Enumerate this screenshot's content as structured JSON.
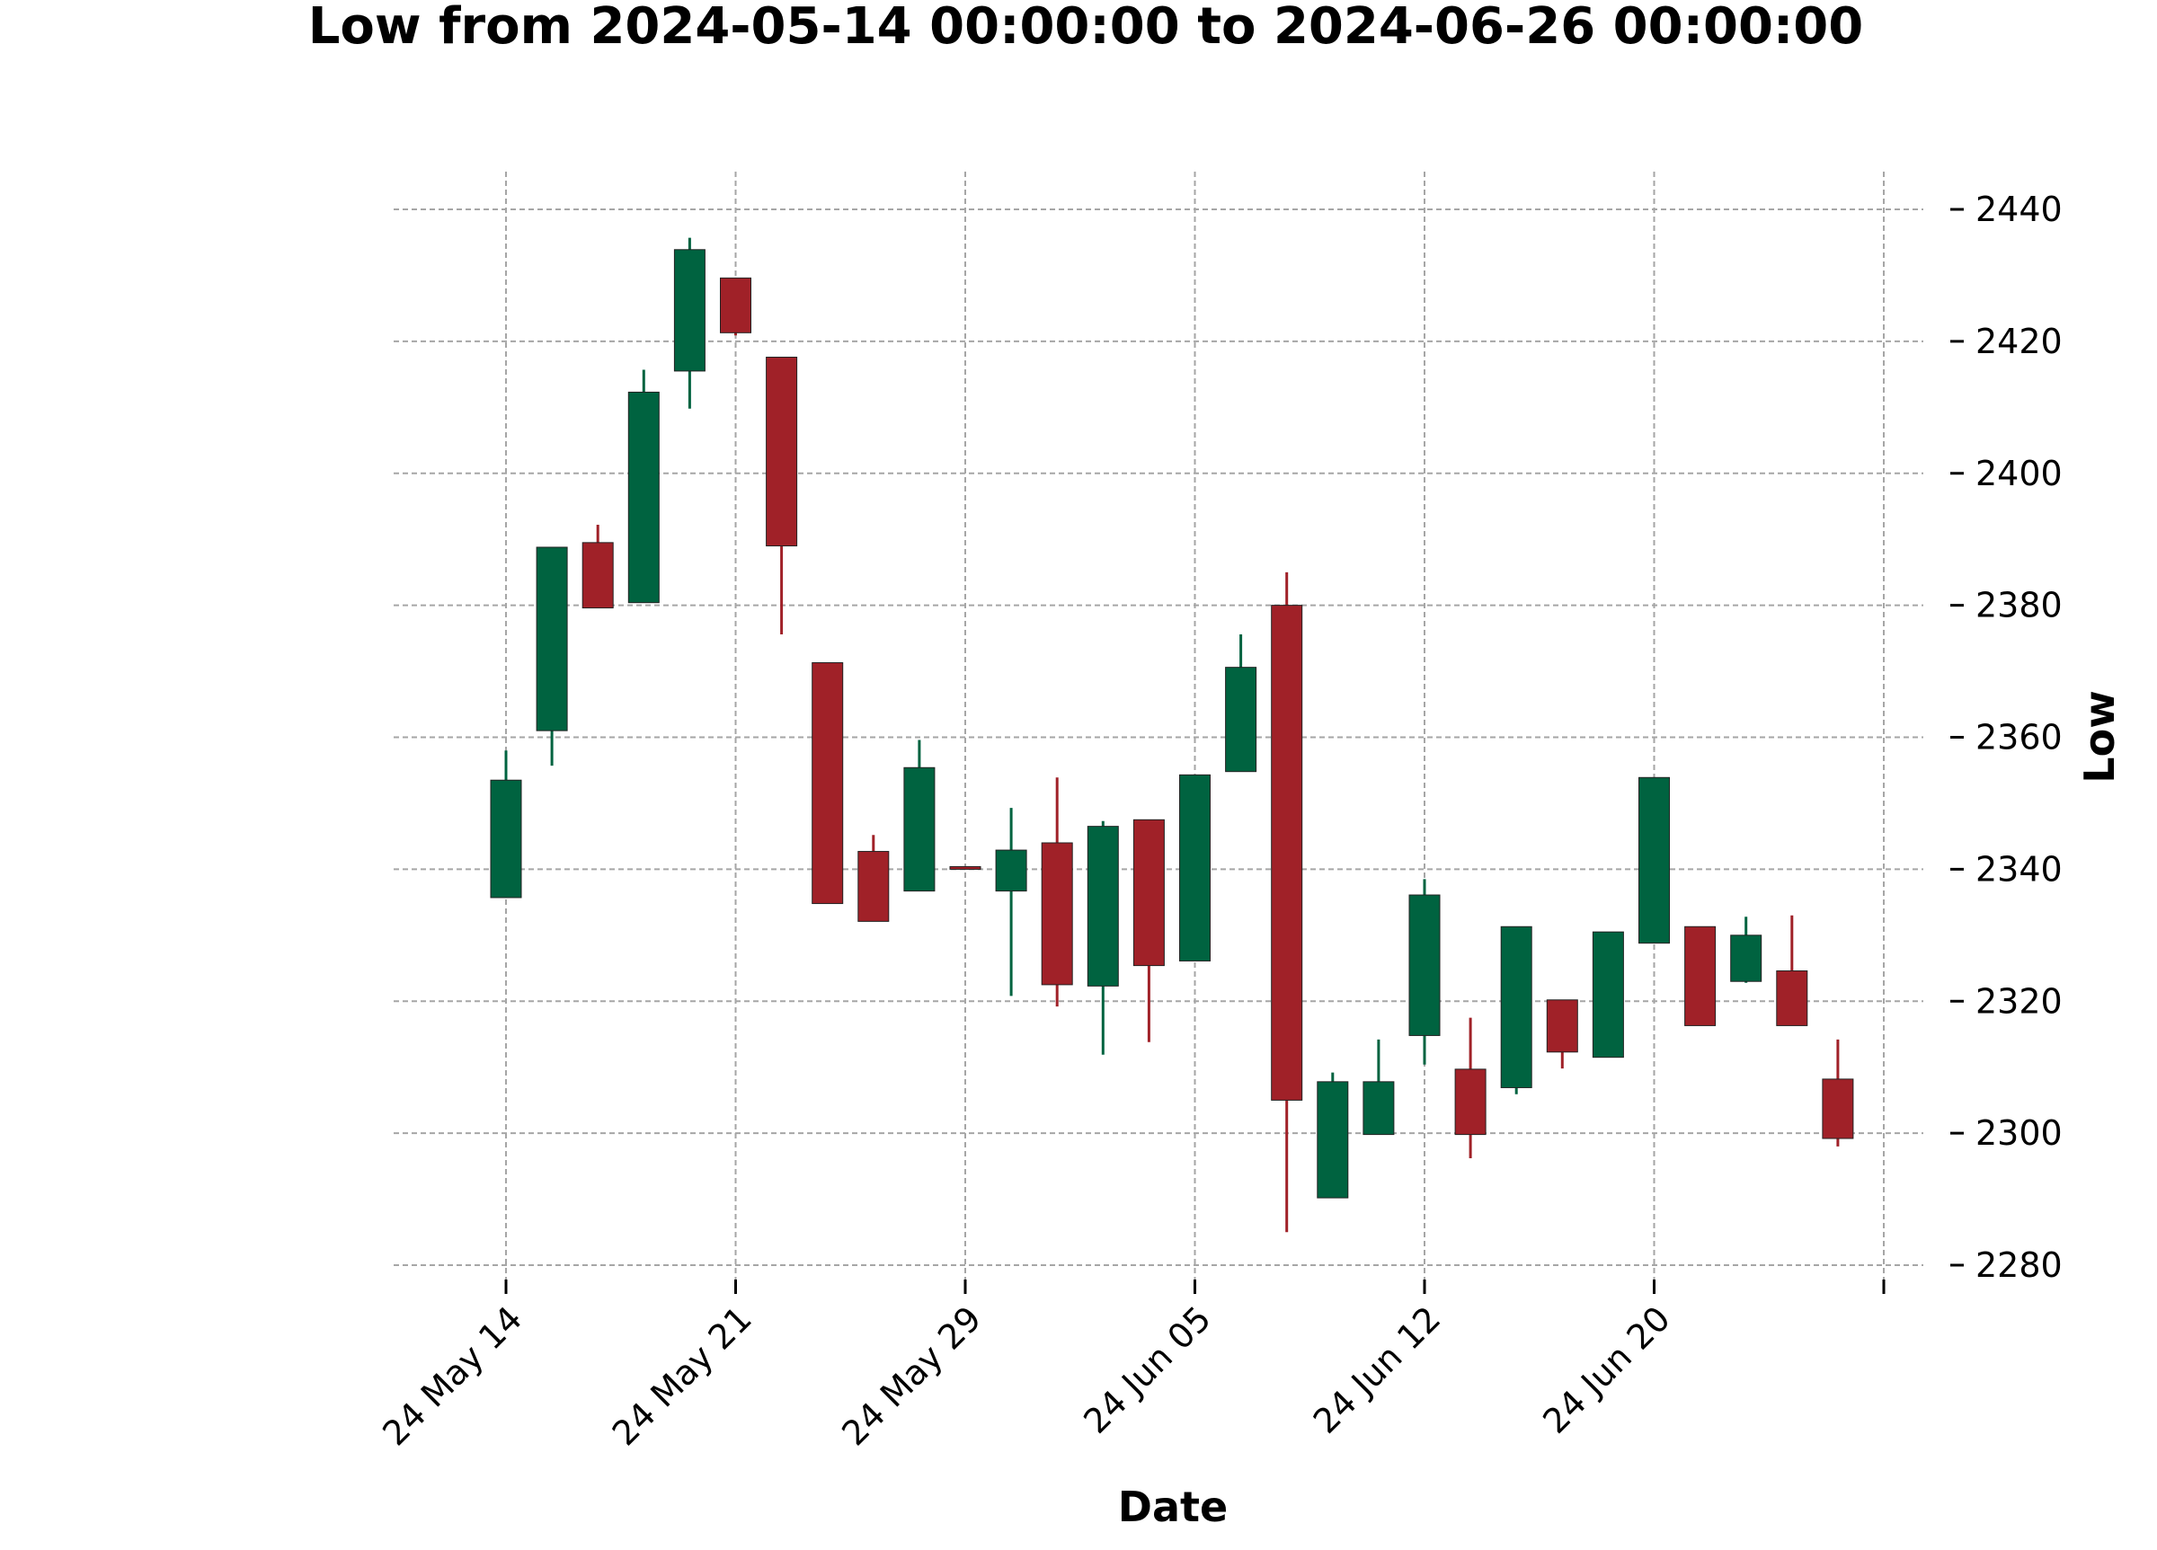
{
  "chart_data": {
    "type": "candlestick",
    "title": "Low from 2024-05-14 00:00:00 to 2024-06-26 00:00:00",
    "xlabel": "Date",
    "ylabel": "Low",
    "ylim": [
      2277,
      2443
    ],
    "y_ticks": [
      2280,
      2300,
      2320,
      2340,
      2360,
      2380,
      2400,
      2420,
      2440
    ],
    "x_ticks": [
      {
        "index": 0,
        "label": "24 May 14"
      },
      {
        "index": 5,
        "label": "24 May 21"
      },
      {
        "index": 10,
        "label": "24 May 29"
      },
      {
        "index": 15,
        "label": "24 Jun 05"
      },
      {
        "index": 20,
        "label": "24 Jun 12"
      },
      {
        "index": 25,
        "label": "24 Jun 20"
      },
      {
        "index": 30,
        "label": ""
      }
    ],
    "grid": true,
    "colors": {
      "up": "#006340",
      "down": "#a02128",
      "grid": "#a6a6a6"
    },
    "candles": [
      {
        "date": "2024-05-14",
        "open": 2335.7,
        "high": 2358.0,
        "low": 2335.7,
        "close": 2353.5
      },
      {
        "date": "2024-05-15",
        "open": 2361.0,
        "high": 2388.8,
        "low": 2355.7,
        "close": 2388.8
      },
      {
        "date": "2024-05-16",
        "open": 2389.5,
        "high": 2392.2,
        "low": 2379.6,
        "close": 2379.6
      },
      {
        "date": "2024-05-17",
        "open": 2380.4,
        "high": 2415.7,
        "low": 2380.4,
        "close": 2412.3
      },
      {
        "date": "2024-05-20",
        "open": 2415.5,
        "high": 2435.7,
        "low": 2409.8,
        "close": 2433.9
      },
      {
        "date": "2024-05-21",
        "open": 2429.6,
        "high": 2429.6,
        "low": 2420.9,
        "close": 2421.3
      },
      {
        "date": "2024-05-22",
        "open": 2417.6,
        "high": 2417.6,
        "low": 2375.6,
        "close": 2389.0
      },
      {
        "date": "2024-05-23",
        "open": 2371.3,
        "high": 2371.3,
        "low": 2334.8,
        "close": 2334.8
      },
      {
        "date": "2024-05-24",
        "open": 2342.7,
        "high": 2345.2,
        "low": 2332.1,
        "close": 2332.1
      },
      {
        "date": "2024-05-28",
        "open": 2336.7,
        "high": 2359.6,
        "low": 2336.7,
        "close": 2355.4
      },
      {
        "date": "2024-05-29",
        "open": 2340.4,
        "high": 2340.4,
        "low": 2340.0,
        "close": 2340.0
      },
      {
        "date": "2024-05-30",
        "open": 2336.7,
        "high": 2349.3,
        "low": 2320.8,
        "close": 2342.9
      },
      {
        "date": "2024-05-31",
        "open": 2344.0,
        "high": 2353.9,
        "low": 2319.2,
        "close": 2322.5
      },
      {
        "date": "2024-06-03",
        "open": 2322.3,
        "high": 2347.3,
        "low": 2311.9,
        "close": 2346.5
      },
      {
        "date": "2024-06-04",
        "open": 2347.5,
        "high": 2347.5,
        "low": 2313.8,
        "close": 2325.4
      },
      {
        "date": "2024-06-05",
        "open": 2326.1,
        "high": 2354.3,
        "low": 2326.1,
        "close": 2354.3
      },
      {
        "date": "2024-06-06",
        "open": 2354.8,
        "high": 2375.6,
        "low": 2354.8,
        "close": 2370.6
      },
      {
        "date": "2024-06-07",
        "open": 2380.0,
        "high": 2385.0,
        "low": 2285.0,
        "close": 2305.0
      },
      {
        "date": "2024-06-10",
        "open": 2290.2,
        "high": 2309.2,
        "low": 2290.2,
        "close": 2307.8
      },
      {
        "date": "2024-06-11",
        "open": 2299.8,
        "high": 2314.2,
        "low": 2299.8,
        "close": 2307.8
      },
      {
        "date": "2024-06-12",
        "open": 2314.8,
        "high": 2338.5,
        "low": 2310.4,
        "close": 2336.1
      },
      {
        "date": "2024-06-13",
        "open": 2309.7,
        "high": 2317.5,
        "low": 2296.2,
        "close": 2299.8
      },
      {
        "date": "2024-06-14",
        "open": 2306.9,
        "high": 2331.3,
        "low": 2305.9,
        "close": 2331.3
      },
      {
        "date": "2024-06-17",
        "open": 2320.2,
        "high": 2320.2,
        "low": 2309.8,
        "close": 2312.3
      },
      {
        "date": "2024-06-18",
        "open": 2311.5,
        "high": 2330.5,
        "low": 2311.5,
        "close": 2330.5
      },
      {
        "date": "2024-06-20",
        "open": 2328.8,
        "high": 2353.9,
        "low": 2328.8,
        "close": 2353.9
      },
      {
        "date": "2024-06-21",
        "open": 2331.3,
        "high": 2331.3,
        "low": 2316.3,
        "close": 2316.3
      },
      {
        "date": "2024-06-24",
        "open": 2323.0,
        "high": 2332.8,
        "low": 2322.8,
        "close": 2330.0
      },
      {
        "date": "2024-06-25",
        "open": 2324.6,
        "high": 2333.0,
        "low": 2316.3,
        "close": 2316.3
      },
      {
        "date": "2024-06-26",
        "open": 2308.2,
        "high": 2314.2,
        "low": 2298.0,
        "close": 2299.2
      }
    ]
  }
}
